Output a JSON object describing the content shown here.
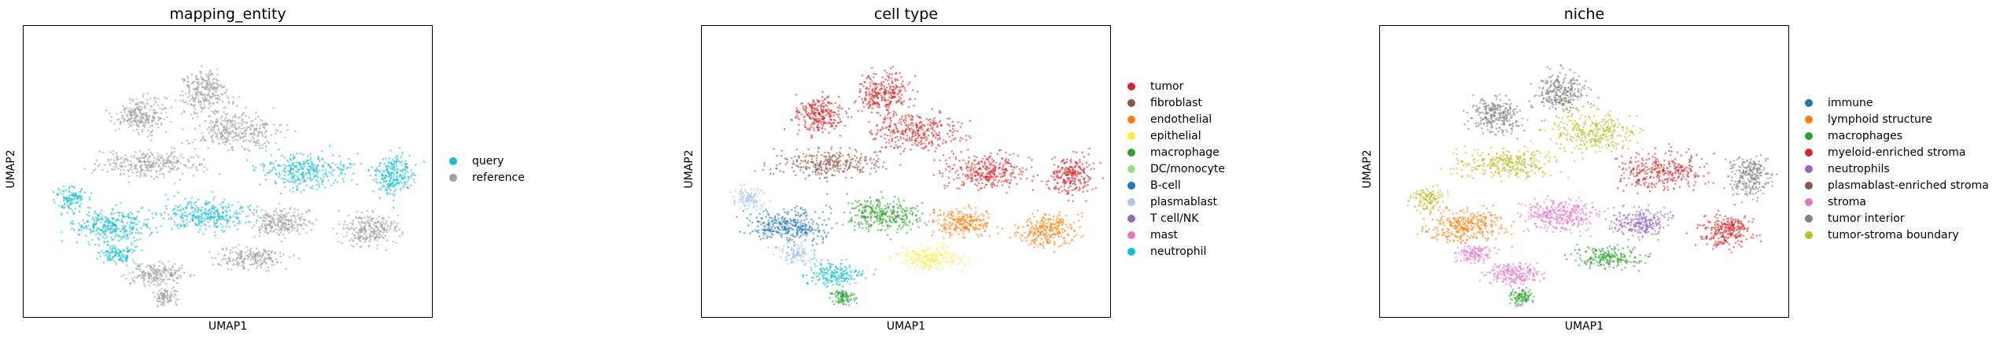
{
  "chart_data": [
    {
      "type": "scatter",
      "title": "mapping_entity",
      "xlabel": "UMAP1",
      "ylabel": "UMAP2",
      "legend_position": "right",
      "grid": false,
      "categories": [
        {
          "name": "query",
          "color": "#17becf"
        },
        {
          "name": "reference",
          "color": "#9e9e9e"
        }
      ]
    },
    {
      "type": "scatter",
      "title": "cell type",
      "xlabel": "UMAP1",
      "ylabel": "UMAP2",
      "legend_position": "right",
      "grid": false,
      "categories": [
        {
          "name": "tumor",
          "color": "#d62728"
        },
        {
          "name": "fibroblast",
          "color": "#8c564b"
        },
        {
          "name": "endothelial",
          "color": "#ff7f0e"
        },
        {
          "name": "epithelial",
          "color": "#ffeb3b"
        },
        {
          "name": "macrophage",
          "color": "#2ca02c"
        },
        {
          "name": "DC/monocyte",
          "color": "#98df8a"
        },
        {
          "name": "B-cell",
          "color": "#1f77b4"
        },
        {
          "name": "plasmablast",
          "color": "#aec7e8"
        },
        {
          "name": "T cell/NK",
          "color": "#9467bd"
        },
        {
          "name": "mast",
          "color": "#e377c2"
        },
        {
          "name": "neutrophil",
          "color": "#17becf"
        }
      ]
    },
    {
      "type": "scatter",
      "title": "niche",
      "xlabel": "UMAP1",
      "ylabel": "UMAP2",
      "legend_position": "right",
      "grid": false,
      "categories": [
        {
          "name": "immune",
          "color": "#1f77b4"
        },
        {
          "name": "lymphoid structure",
          "color": "#ff7f0e"
        },
        {
          "name": "macrophages",
          "color": "#2ca02c"
        },
        {
          "name": "myeloid-enriched stroma",
          "color": "#d62728"
        },
        {
          "name": "neutrophils",
          "color": "#9467bd"
        },
        {
          "name": "plasmablast-enriched stroma",
          "color": "#8c564b"
        },
        {
          "name": "stroma",
          "color": "#e377c2"
        },
        {
          "name": "tumor interior",
          "color": "#7f7f7f"
        },
        {
          "name": "tumor-stroma boundary",
          "color": "#bcbd22"
        }
      ]
    }
  ]
}
